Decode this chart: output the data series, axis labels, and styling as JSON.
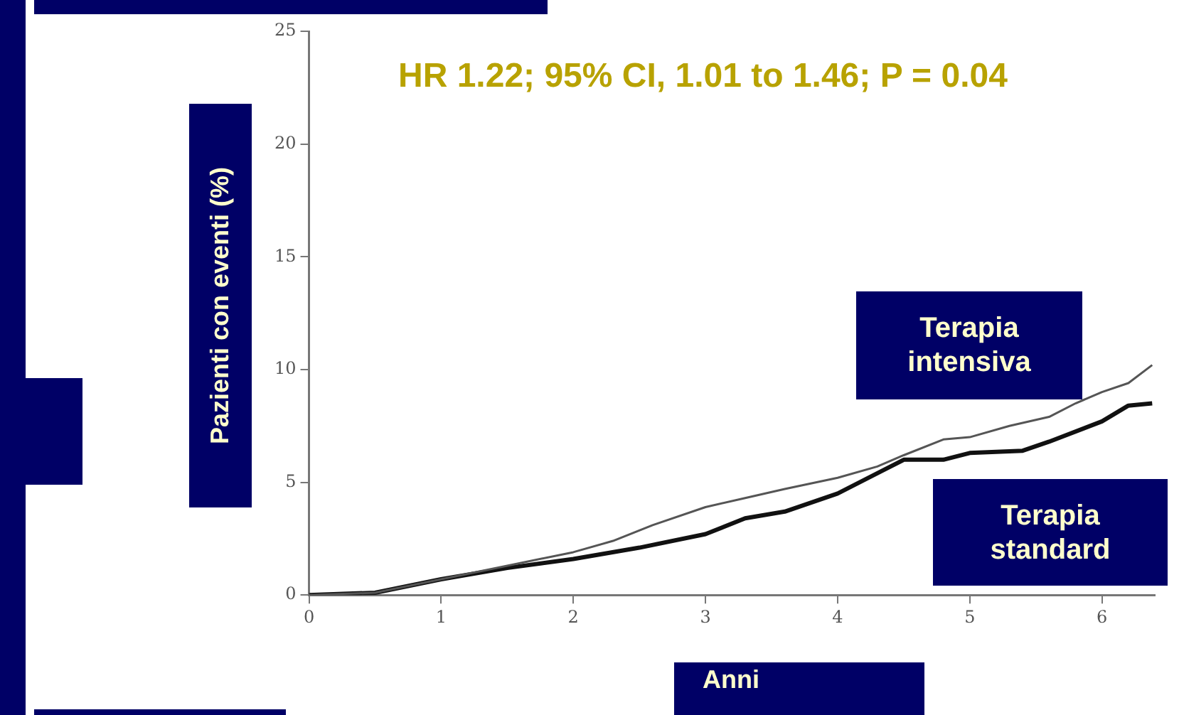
{
  "chart_data": {
    "type": "line",
    "xlabel": "Anni",
    "ylabel": "Pazienti con eventi (%)",
    "annotations": [
      "HR 1.22; 95% CI, 1.01 to 1.46; P = 0.04"
    ],
    "xlim": [
      0,
      6.4
    ],
    "xticks": [
      0,
      1,
      2,
      3,
      4,
      5,
      6
    ],
    "ylim": [
      0,
      25
    ],
    "yticks": [
      0,
      5,
      10,
      15,
      20,
      25
    ],
    "grid": false,
    "legend": false,
    "series": [
      {
        "name": "Terapia intensiva",
        "color": "#555555",
        "x": [
          0,
          0.5,
          1,
          1.5,
          2,
          2.3,
          2.6,
          3,
          3.3,
          3.6,
          4,
          4.3,
          4.5,
          4.8,
          5,
          5.3,
          5.6,
          5.8,
          6,
          6.2,
          6.38
        ],
        "values": [
          0,
          0.1,
          0.7,
          1.3,
          1.9,
          2.4,
          3.1,
          3.9,
          4.3,
          4.7,
          5.2,
          5.7,
          6.2,
          6.9,
          7.0,
          7.5,
          7.9,
          8.5,
          9.0,
          9.4,
          10.2
        ]
      },
      {
        "name": "Terapia standard",
        "color": "#111111",
        "x": [
          0,
          0.5,
          1,
          1.5,
          2,
          2.5,
          3,
          3.3,
          3.6,
          4,
          4.3,
          4.5,
          4.8,
          5,
          5.4,
          5.6,
          6,
          6.2,
          6.38
        ],
        "values": [
          0,
          0.1,
          0.7,
          1.2,
          1.6,
          2.1,
          2.7,
          3.4,
          3.7,
          4.5,
          5.4,
          6.0,
          6.0,
          6.3,
          6.4,
          6.8,
          7.7,
          8.4,
          8.5
        ]
      }
    ]
  }
}
